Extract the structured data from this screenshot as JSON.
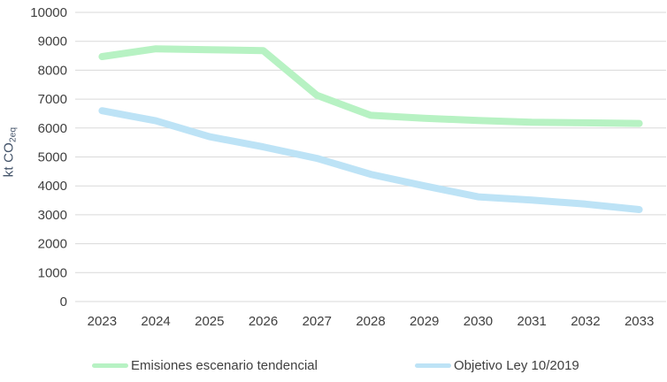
{
  "chart_data": {
    "type": "line",
    "title": "",
    "ylabel": "kt CO2eq",
    "ylabel_parts": {
      "main": "kt CO",
      "sub": "2eq"
    },
    "categories": [
      "2023",
      "2024",
      "2025",
      "2026",
      "2027",
      "2028",
      "2029",
      "2030",
      "2031",
      "2032",
      "2033"
    ],
    "series": [
      {
        "name": "Emisiones escenario tendencial",
        "color": "#b7f2c3",
        "values": [
          8470,
          8740,
          8710,
          8680,
          7130,
          6440,
          6340,
          6260,
          6200,
          6180,
          6160
        ]
      },
      {
        "name": "Objetivo Ley 10/2019",
        "color": "#bde3f6",
        "values": [
          6600,
          6250,
          5700,
          5350,
          4950,
          4400,
          4000,
          3620,
          3510,
          3370,
          3180
        ]
      }
    ],
    "ylim": [
      0,
      10000
    ],
    "ytick_step": 1000,
    "yticks": [
      "0",
      "1000",
      "2000",
      "3000",
      "4000",
      "5000",
      "6000",
      "7000",
      "8000",
      "9000",
      "10000"
    ],
    "grid": true,
    "legend_position": "bottom",
    "colors": {
      "gridline": "#d9d9d9",
      "tick_label": "#404040",
      "axis_title": "#44546a",
      "legend_text": "#404040",
      "background": "#ffffff"
    }
  }
}
